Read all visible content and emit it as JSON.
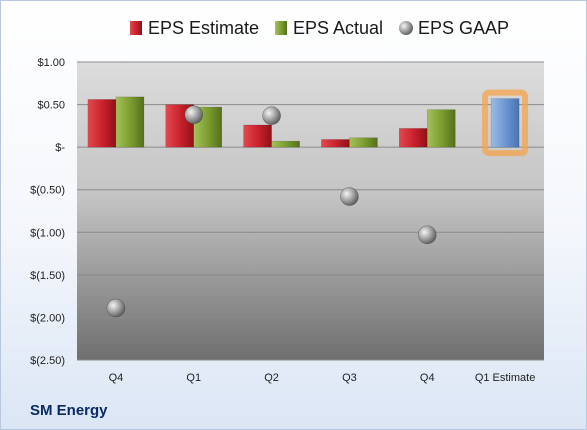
{
  "company": "SM Energy",
  "chart_data": {
    "type": "bar",
    "categories": [
      "Q4",
      "Q1",
      "Q2",
      "Q3",
      "Q4",
      "Q1 Estimate"
    ],
    "series": [
      {
        "name": "EPS Estimate",
        "values": [
          0.56,
          0.5,
          0.26,
          0.09,
          0.22,
          null
        ],
        "color": "#c8202a"
      },
      {
        "name": "EPS Actual",
        "values": [
          0.59,
          0.47,
          0.07,
          0.11,
          0.44,
          null
        ],
        "color": "#7a9a2e"
      },
      {
        "name": "EPS GAAP",
        "values": [
          -1.89,
          0.38,
          0.37,
          -0.58,
          -1.03,
          null
        ],
        "color": "#a9a9a9",
        "marker": "sphere"
      }
    ],
    "estimate": {
      "category": "Q1 Estimate",
      "value": 0.57,
      "color": "#6a93cf",
      "highlight": "#f5a34a"
    },
    "yticks": [
      1.0,
      0.5,
      0,
      -0.5,
      -1.0,
      -1.5,
      -2.0,
      -2.5
    ],
    "ytick_labels": [
      "$1.00",
      "$0.50",
      "$-",
      "$(0.50)",
      "$(1.00)",
      "$(1.50)",
      "$(2.00)",
      "$(2.50)"
    ],
    "ylim": [
      -2.5,
      1.0
    ],
    "grid": true,
    "legend": "top"
  }
}
